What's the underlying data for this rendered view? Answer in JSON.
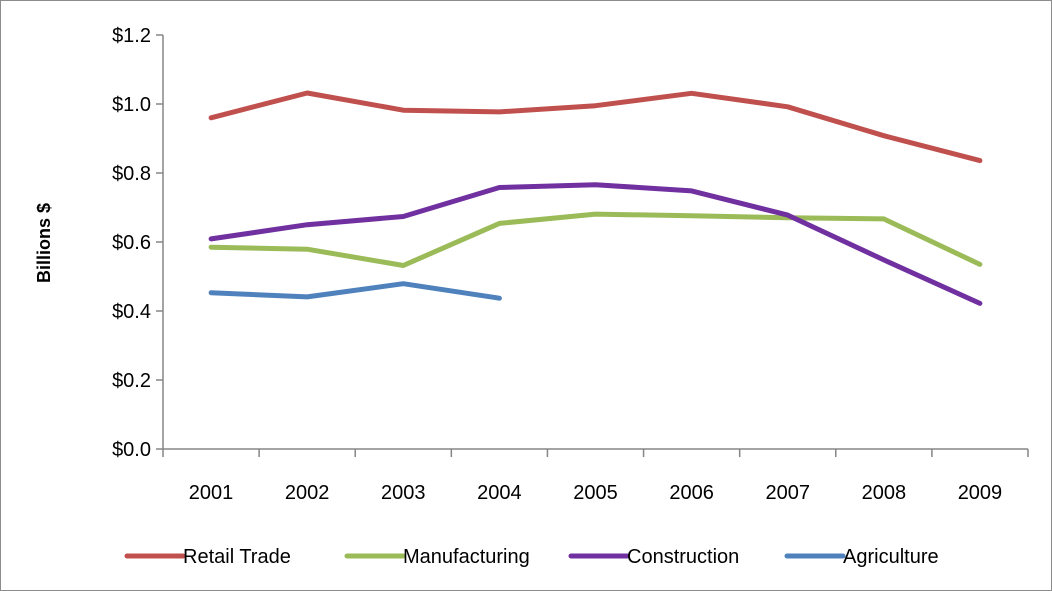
{
  "chart_data": {
    "type": "line",
    "ylabel": "Billions $",
    "xlabel": "",
    "title": "",
    "ylim": [
      0,
      1.2
    ],
    "yticks": [
      0.0,
      0.2,
      0.4,
      0.6,
      0.8,
      1.0,
      1.2
    ],
    "ytick_labels": [
      "$0.0",
      "$0.2",
      "$0.4",
      "$0.6",
      "$0.8",
      "$1.0",
      "$1.2"
    ],
    "categories": [
      "2001",
      "2002",
      "2003",
      "2004",
      "2005",
      "2006",
      "2007",
      "2008",
      "2009"
    ],
    "grid": false,
    "legend": "bottom",
    "series": [
      {
        "name": "Retail Trade",
        "color": "#C0504D",
        "values": [
          0.96,
          1.032,
          0.982,
          0.977,
          0.995,
          1.031,
          0.992,
          0.908,
          0.836
        ]
      },
      {
        "name": "Manufacturing",
        "color": "#9BBB59",
        "values": [
          0.585,
          0.579,
          0.532,
          0.654,
          0.681,
          0.676,
          0.67,
          0.667,
          0.535
        ]
      },
      {
        "name": "Construction",
        "color": "#7030A0",
        "values": [
          0.609,
          0.65,
          0.674,
          0.758,
          0.766,
          0.748,
          0.678,
          0.548,
          0.422
        ]
      },
      {
        "name": "Agriculture",
        "color": "#4F81BD",
        "values": [
          0.453,
          0.441,
          0.479,
          0.437,
          null,
          null,
          null,
          null,
          null
        ]
      }
    ]
  }
}
